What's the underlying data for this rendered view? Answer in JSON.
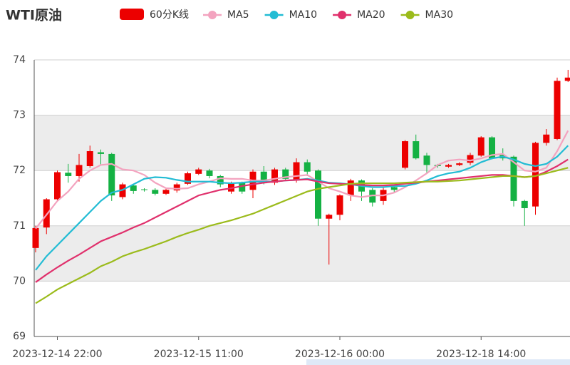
{
  "chart_data": {
    "type": "candlestick",
    "title": "WTI原油",
    "categories": [
      null,
      null,
      "2023-12-14 22:00",
      null,
      null,
      null,
      null,
      null,
      null,
      null,
      null,
      null,
      null,
      null,
      null,
      "2023-12-15 11:00",
      null,
      null,
      null,
      null,
      null,
      null,
      null,
      null,
      null,
      null,
      null,
      null,
      "2023-12-16 00:00",
      null,
      null,
      null,
      null,
      null,
      null,
      null,
      null,
      null,
      null,
      null,
      null,
      "2023-12-18 14:00",
      null,
      null,
      null,
      null,
      null,
      null,
      null,
      null
    ],
    "candles": {
      "name": "60分K线",
      "up_color": "#ec0000",
      "down_color": "#14b143",
      "open": [
        70.6,
        70.97,
        71.48,
        71.96,
        71.9,
        72.08,
        72.33,
        72.3,
        71.52,
        71.73,
        71.66,
        71.65,
        71.58,
        71.64,
        71.76,
        71.94,
        72.0,
        71.9,
        71.62,
        71.78,
        71.65,
        71.98,
        71.78,
        72.02,
        71.82,
        72.15,
        72.0,
        71.13,
        71.2,
        71.55,
        71.82,
        71.65,
        71.45,
        71.7,
        72.05,
        72.53,
        72.27,
        72.1,
        72.07,
        72.1,
        72.14,
        72.27,
        72.6,
        72.28,
        72.25,
        71.45,
        71.35,
        72.5,
        72.57,
        73.62
      ],
      "close": [
        70.96,
        71.48,
        71.97,
        71.9,
        72.1,
        72.35,
        72.3,
        71.55,
        71.75,
        71.63,
        71.65,
        71.58,
        71.65,
        71.75,
        71.95,
        72.02,
        71.9,
        71.75,
        71.78,
        71.62,
        71.98,
        71.77,
        72.02,
        71.85,
        72.15,
        71.98,
        71.13,
        71.2,
        71.55,
        71.82,
        71.62,
        71.42,
        71.65,
        71.65,
        72.53,
        72.22,
        72.1,
        72.08,
        72.1,
        72.13,
        72.28,
        72.6,
        72.22,
        72.22,
        71.45,
        71.32,
        72.5,
        72.65,
        73.62,
        73.68
      ],
      "low": [
        70.52,
        70.85,
        71.45,
        71.78,
        71.8,
        72.05,
        72.1,
        71.45,
        71.48,
        71.58,
        71.62,
        71.55,
        71.56,
        71.6,
        71.74,
        71.92,
        71.86,
        71.7,
        71.58,
        71.58,
        71.5,
        71.75,
        71.74,
        71.82,
        71.78,
        71.9,
        71.0,
        70.3,
        71.1,
        71.45,
        71.45,
        71.35,
        71.38,
        71.6,
        72.02,
        72.2,
        71.95,
        72.05,
        72.05,
        72.08,
        72.1,
        72.25,
        72.2,
        72.18,
        71.35,
        71.0,
        71.2,
        72.45,
        72.55,
        73.6
      ],
      "high": [
        71.0,
        71.5,
        72.0,
        72.12,
        72.3,
        72.45,
        72.38,
        72.32,
        71.78,
        71.75,
        71.68,
        71.68,
        71.68,
        71.78,
        71.98,
        72.05,
        72.03,
        71.92,
        71.8,
        71.8,
        72.02,
        72.08,
        72.05,
        72.05,
        72.22,
        72.2,
        72.02,
        71.22,
        71.57,
        71.85,
        71.84,
        71.68,
        71.7,
        71.72,
        72.55,
        72.65,
        72.32,
        72.12,
        72.12,
        72.15,
        72.32,
        72.62,
        72.62,
        72.4,
        72.27,
        71.47,
        72.52,
        72.75,
        73.68,
        73.82
      ]
    },
    "series": [
      {
        "name": "MA5",
        "color": "#f3a3bf",
        "values": [
          70.95,
          71.2,
          71.45,
          71.62,
          71.85,
          72.0,
          72.1,
          72.12,
          72.02,
          72.0,
          71.92,
          71.78,
          71.68,
          71.67,
          71.68,
          71.75,
          71.8,
          71.86,
          71.85,
          71.85,
          71.82,
          71.82,
          71.85,
          71.88,
          71.9,
          71.92,
          71.8,
          71.68,
          71.62,
          71.55,
          71.52,
          71.55,
          71.55,
          71.6,
          71.7,
          71.82,
          71.95,
          72.1,
          72.18,
          72.2,
          72.18,
          72.22,
          72.28,
          72.3,
          72.15,
          72.0,
          71.98,
          72.05,
          72.35,
          72.72
        ]
      },
      {
        "name": "MA10",
        "color": "#22bcd4",
        "values": [
          70.2,
          70.45,
          70.65,
          70.85,
          71.05,
          71.25,
          71.45,
          71.6,
          71.65,
          71.75,
          71.85,
          71.88,
          71.87,
          71.83,
          71.8,
          71.8,
          71.8,
          71.78,
          71.77,
          71.78,
          71.8,
          71.8,
          71.8,
          71.82,
          71.83,
          71.85,
          71.82,
          71.78,
          71.77,
          71.75,
          71.72,
          71.7,
          71.7,
          71.72,
          71.72,
          71.76,
          71.82,
          71.9,
          71.95,
          71.98,
          72.05,
          72.15,
          72.22,
          72.25,
          72.2,
          72.12,
          72.08,
          72.12,
          72.25,
          72.45
        ]
      },
      {
        "name": "MA20",
        "color": "#e0306c",
        "values": [
          69.98,
          70.12,
          70.25,
          70.37,
          70.48,
          70.6,
          70.72,
          70.8,
          70.88,
          70.97,
          71.05,
          71.15,
          71.25,
          71.35,
          71.45,
          71.55,
          71.6,
          71.65,
          71.68,
          71.72,
          71.75,
          71.78,
          71.8,
          71.82,
          71.83,
          71.84,
          71.8,
          71.77,
          71.76,
          71.75,
          71.74,
          71.73,
          71.73,
          71.74,
          71.76,
          71.78,
          71.8,
          71.82,
          71.84,
          71.86,
          71.88,
          71.9,
          71.92,
          71.92,
          71.9,
          71.88,
          71.9,
          71.98,
          72.08,
          72.2
        ]
      },
      {
        "name": "MA30",
        "color": "#9bbb1b",
        "values": [
          69.6,
          69.72,
          69.85,
          69.95,
          70.05,
          70.15,
          70.27,
          70.35,
          70.45,
          70.52,
          70.58,
          70.65,
          70.72,
          70.8,
          70.87,
          70.93,
          71.0,
          71.05,
          71.1,
          71.16,
          71.22,
          71.3,
          71.38,
          71.46,
          71.54,
          71.62,
          71.67,
          71.7,
          71.73,
          71.76,
          71.77,
          71.77,
          71.77,
          71.77,
          71.78,
          71.79,
          71.8,
          71.8,
          71.81,
          71.82,
          71.84,
          71.86,
          71.88,
          71.9,
          71.9,
          71.88,
          71.9,
          71.95,
          72.0,
          72.05
        ]
      }
    ],
    "ylim": [
      69,
      74
    ],
    "yticks": [
      69,
      70,
      71,
      72,
      73,
      74
    ],
    "grid": true,
    "split_area": true
  }
}
